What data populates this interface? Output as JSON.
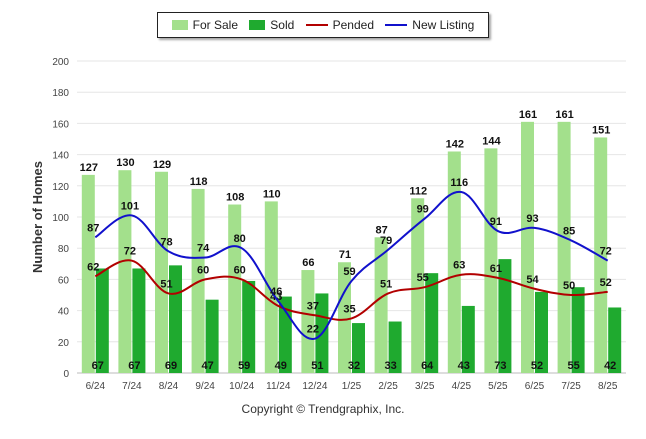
{
  "chart_data": {
    "type": "bar",
    "categories": [
      "6/24",
      "7/24",
      "8/24",
      "9/24",
      "10/24",
      "11/24",
      "12/24",
      "1/25",
      "2/25",
      "3/25",
      "4/25",
      "5/25",
      "6/25",
      "7/25",
      "8/25"
    ],
    "series": [
      {
        "name": "For Sale",
        "kind": "bar",
        "color": "#a3e08c",
        "values": [
          127,
          130,
          129,
          118,
          108,
          110,
          66,
          71,
          87,
          112,
          142,
          144,
          161,
          161,
          151
        ]
      },
      {
        "name": "Sold",
        "kind": "bar",
        "color": "#1faa2f",
        "values": [
          67,
          67,
          69,
          47,
          59,
          49,
          51,
          32,
          33,
          64,
          43,
          73,
          52,
          55,
          42
        ]
      },
      {
        "name": "Pended",
        "kind": "line",
        "color": "#b20000",
        "values": [
          62,
          72,
          51,
          60,
          60,
          43,
          37,
          35,
          51,
          55,
          63,
          61,
          54,
          50,
          52
        ]
      },
      {
        "name": "New Listing",
        "kind": "line",
        "color": "#1111cc",
        "values": [
          87,
          101,
          78,
          74,
          80,
          46,
          22,
          59,
          79,
          99,
          116,
          91,
          93,
          85,
          72
        ]
      }
    ],
    "ylabel": "Number of Homes",
    "ylim": [
      0,
      200
    ],
    "yticks": [
      0,
      20,
      40,
      60,
      80,
      100,
      120,
      140,
      160,
      180,
      200
    ],
    "grid": true,
    "legend_position": "top-center"
  },
  "footer": {
    "copyright": "Copyright © Trendgraphix, Inc."
  }
}
